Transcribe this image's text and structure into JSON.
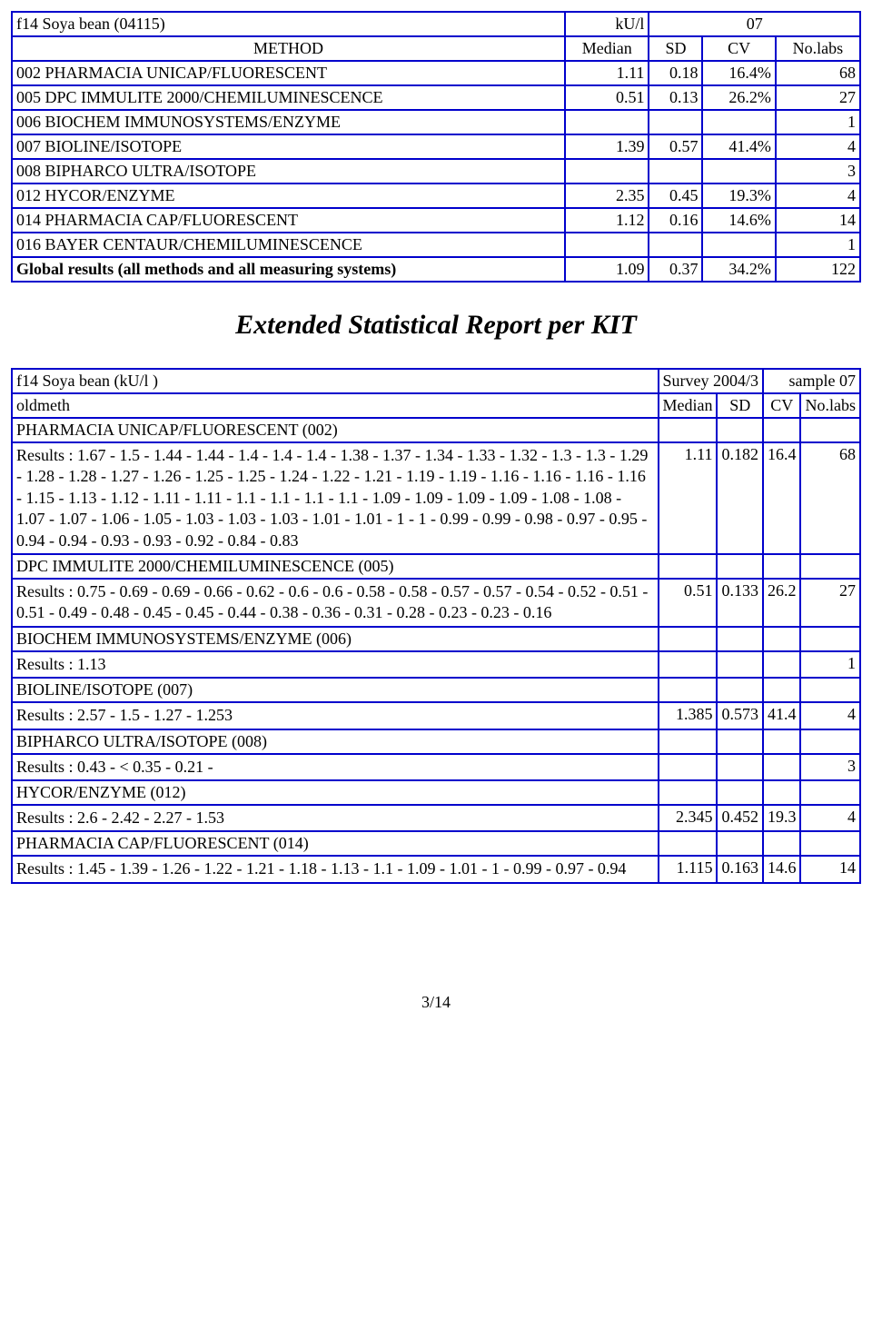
{
  "table1": {
    "header_row": {
      "name": "f14 Soya bean (04115)",
      "unit": "kU/l",
      "sample": "07"
    },
    "col_labels": {
      "method": "METHOD",
      "median": "Median",
      "sd": "SD",
      "cv": "CV",
      "nlabs": "No.labs"
    },
    "rows": [
      {
        "method": "002  PHARMACIA UNICAP/FLUORESCENT",
        "median": "1.11",
        "sd": "0.18",
        "cv": "16.4%",
        "nlabs": "68"
      },
      {
        "method": "005  DPC IMMULITE 2000/CHEMILUMINESCENCE",
        "median": "0.51",
        "sd": "0.13",
        "cv": "26.2%",
        "nlabs": "27"
      },
      {
        "method": "006  BIOCHEM IMMUNOSYSTEMS/ENZYME",
        "median": "",
        "sd": "",
        "cv": "",
        "nlabs": "1"
      },
      {
        "method": "007  BIOLINE/ISOTOPE",
        "median": "1.39",
        "sd": "0.57",
        "cv": "41.4%",
        "nlabs": "4"
      },
      {
        "method": "008  BIPHARCO ULTRA/ISOTOPE",
        "median": "",
        "sd": "",
        "cv": "",
        "nlabs": "3"
      },
      {
        "method": "012  HYCOR/ENZYME",
        "median": "2.35",
        "sd": "0.45",
        "cv": "19.3%",
        "nlabs": "4"
      },
      {
        "method": "014  PHARMACIA CAP/FLUORESCENT",
        "median": "1.12",
        "sd": "0.16",
        "cv": "14.6%",
        "nlabs": "14"
      },
      {
        "method": "016  BAYER CENTAUR/CHEMILUMINESCENCE",
        "median": "",
        "sd": "",
        "cv": "",
        "nlabs": "1"
      }
    ],
    "global": {
      "label": "Global results (all methods and all measuring systems)",
      "median": "1.09",
      "sd": "0.37",
      "cv": "34.2%",
      "nlabs": "122"
    }
  },
  "midtitle": "Extended Statistical Report per KIT",
  "table2": {
    "header_row": {
      "name": "f14 Soya bean (kU/l )",
      "survey": "Survey 2004/3",
      "sample": "sample 07"
    },
    "col_labels": {
      "oldmeth": "oldmeth",
      "median": "Median",
      "sd": "SD",
      "cv": "CV",
      "nlabs": "No.labs"
    },
    "groups": [
      {
        "title": "PHARMACIA UNICAP/FLUORESCENT (002)",
        "results": "Results : 1.67 - 1.5 - 1.44 - 1.44 - 1.4 - 1.4 - 1.4 - 1.38 - 1.37 - 1.34 - 1.33 - 1.32 - 1.3 - 1.3 - 1.29 - 1.28 - 1.28 - 1.27 - 1.26 - 1.25 - 1.25 - 1.24 - 1.22 - 1.21 - 1.19 - 1.19 - 1.16 - 1.16 - 1.16 - 1.16 - 1.15 - 1.13 - 1.12 - 1.11 - 1.11 - 1.1 - 1.1 - 1.1 - 1.1 - 1.09 - 1.09 - 1.09 - 1.09 - 1.08 - 1.08 - 1.07 - 1.07 - 1.06 - 1.05 - 1.03 - 1.03 - 1.03 - 1.01 - 1.01 - 1 - 1 - 0.99 - 0.99 - 0.98 - 0.97 - 0.95 - 0.94 - 0.94 - 0.93 - 0.93 - 0.92 - 0.84 - 0.83",
        "median": "1.11",
        "sd": "0.182",
        "cv": "16.4",
        "nlabs": "68"
      },
      {
        "title": "DPC IMMULITE 2000/CHEMILUMINESCENCE (005)",
        "results": "Results : 0.75 - 0.69 - 0.69 - 0.66 - 0.62 - 0.6 - 0.6 - 0.58 - 0.58 - 0.57 - 0.57 - 0.54 - 0.52 - 0.51 - 0.51 - 0.49 - 0.48 - 0.45 - 0.45 - 0.44 - 0.38 - 0.36 - 0.31 - 0.28 - 0.23 - 0.23 - 0.16",
        "median": "0.51",
        "sd": "0.133",
        "cv": "26.2",
        "nlabs": "27"
      },
      {
        "title": "BIOCHEM IMMUNOSYSTEMS/ENZYME (006)",
        "results": "Results : 1.13",
        "median": "",
        "sd": "",
        "cv": "",
        "nlabs": "1"
      },
      {
        "title": "BIOLINE/ISOTOPE (007)",
        "results": "Results : 2.57 - 1.5 - 1.27 - 1.253",
        "median": "1.385",
        "sd": "0.573",
        "cv": "41.4",
        "nlabs": "4"
      },
      {
        "title": "BIPHARCO ULTRA/ISOTOPE (008)",
        "results": "Results : 0.43 - < 0.35 - 0.21 -",
        "median": "",
        "sd": "",
        "cv": "",
        "nlabs": "3"
      },
      {
        "title": "HYCOR/ENZYME (012)",
        "results": "Results : 2.6 - 2.42 - 2.27 - 1.53",
        "median": "2.345",
        "sd": "0.452",
        "cv": "19.3",
        "nlabs": "4"
      },
      {
        "title": "PHARMACIA CAP/FLUORESCENT (014)",
        "results": "Results : 1.45 - 1.39 - 1.26 - 1.22 - 1.21 - 1.18 - 1.13 - 1.1 - 1.09 - 1.01 - 1 - 0.99 - 0.97 - 0.94",
        "median": "1.115",
        "sd": "0.163",
        "cv": "14.6",
        "nlabs": "14"
      }
    ]
  },
  "pagenum": "3/14",
  "colors": {
    "border": "#0000cc",
    "bg": "#ffffff"
  }
}
